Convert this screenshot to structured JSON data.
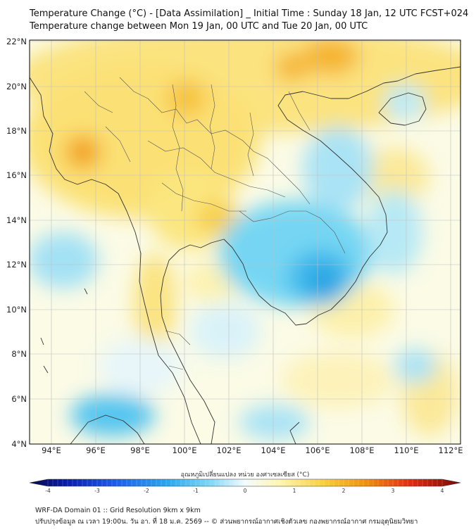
{
  "title": {
    "line1": "Temperature Change (°C) - [Data Assimilation] _ Initial Time : Sunday 18 Jan, 12 UTC FCST+024",
    "line2": "Temperature change between Mon 19 Jan, 00 UTC and Tue 20 Jan, 00 UTC"
  },
  "map": {
    "lon_labels": [
      "94°E",
      "96°E",
      "98°E",
      "100°E",
      "102°E",
      "104°E",
      "106°E",
      "108°E",
      "110°E",
      "112°E"
    ],
    "lat_labels": [
      "22°N",
      "20°N",
      "18°N",
      "16°N",
      "14°N",
      "12°N",
      "10°N",
      "8°N",
      "6°N",
      "4°N"
    ],
    "extent": {
      "lon_min": 93,
      "lon_max": 112.5,
      "lat_min": 4,
      "lat_max": 22
    }
  },
  "colorbar": {
    "label": "อุณหภูมิเปลี่ยนแปลง หน่วย องศาเซลเซียส (°C)",
    "ticks": [
      "-4",
      "-3",
      "-2",
      "-1",
      "0",
      "1",
      "2",
      "3",
      "4"
    ],
    "range": [
      -4,
      4
    ]
  },
  "footer": {
    "line1": "WRF-DA Domain 01 :: Grid Resolution 9km x 9km",
    "line2": "ปรับปรุงข้อมูล ณ เวลา 19:00น. วัน อา. ที่ 18 ม.ค. 2569 -- © ส่วนพยากรณ์อากาศเชิงตัวเลข กองพยากรณ์อากาศ กรมอุตุนิยมวิทยา"
  },
  "colors": {
    "warm": "#f5b800",
    "hot": "#f08a00",
    "cool": "#3ec8f0",
    "cold": "#1aa0e6"
  }
}
